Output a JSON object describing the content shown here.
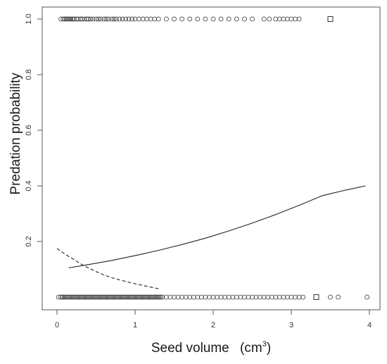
{
  "chart_data": {
    "type": "scatter",
    "xlabel": "Seed volume",
    "xlabel_unit": "(cm",
    "xlabel_unit_sup": "3",
    "xlabel_unit_close": ")",
    "ylabel": "Predation probability",
    "xlim": [
      0,
      4
    ],
    "ylim": [
      0,
      1
    ],
    "x_ticks": [
      {
        "value": 0,
        "label": "0"
      },
      {
        "value": 1,
        "label": "1"
      },
      {
        "value": 2,
        "label": "2"
      },
      {
        "value": 3,
        "label": "3"
      },
      {
        "value": 4,
        "label": "4"
      }
    ],
    "y_ticks": [
      {
        "value": 0.2,
        "label": "0.2"
      },
      {
        "value": 0.4,
        "label": "0.4"
      },
      {
        "value": 0.6,
        "label": "0.6"
      },
      {
        "value": 0.8,
        "label": "0.8"
      },
      {
        "value": 1.0,
        "label": "1.0"
      }
    ],
    "grid": false,
    "series": [
      {
        "marker": "circle",
        "points_y1": [
          0.05,
          0.08,
          0.1,
          0.12,
          0.14,
          0.16,
          0.18,
          0.2,
          0.22,
          0.25,
          0.27,
          0.3,
          0.32,
          0.35,
          0.38,
          0.4,
          0.43,
          0.46,
          0.5,
          0.53,
          0.56,
          0.6,
          0.63,
          0.66,
          0.7,
          0.73,
          0.76,
          0.8,
          0.84,
          0.88,
          0.92,
          0.96,
          1.0,
          1.05,
          1.1,
          1.15,
          1.2,
          1.25,
          1.3,
          1.4,
          1.5,
          1.6,
          1.7,
          1.8,
          1.9,
          2.0,
          2.1,
          2.2,
          2.3,
          2.4,
          2.5,
          2.65,
          2.72,
          2.8,
          2.85,
          2.9,
          2.95,
          3.0,
          3.05,
          3.1
        ],
        "points_y0": [
          0.02,
          0.05,
          0.07,
          0.09,
          0.11,
          0.13,
          0.15,
          0.17,
          0.19,
          0.21,
          0.23,
          0.25,
          0.27,
          0.29,
          0.31,
          0.33,
          0.35,
          0.37,
          0.39,
          0.41,
          0.43,
          0.45,
          0.47,
          0.49,
          0.51,
          0.53,
          0.55,
          0.57,
          0.59,
          0.61,
          0.63,
          0.65,
          0.67,
          0.69,
          0.71,
          0.73,
          0.75,
          0.77,
          0.79,
          0.81,
          0.83,
          0.85,
          0.87,
          0.89,
          0.91,
          0.93,
          0.95,
          0.97,
          0.99,
          1.01,
          1.03,
          1.05,
          1.07,
          1.09,
          1.11,
          1.13,
          1.15,
          1.17,
          1.19,
          1.21,
          1.23,
          1.25,
          1.27,
          1.29,
          1.31,
          1.33,
          1.35,
          1.4,
          1.45,
          1.5,
          1.55,
          1.6,
          1.65,
          1.7,
          1.75,
          1.8,
          1.85,
          1.9,
          1.95,
          2.0,
          2.05,
          2.1,
          2.15,
          2.2,
          2.25,
          2.3,
          2.35,
          2.4,
          2.45,
          2.5,
          2.55,
          2.6,
          2.65,
          2.7,
          2.75,
          2.8,
          2.85,
          2.9,
          2.95,
          3.0,
          3.05,
          3.1,
          3.15,
          3.5,
          3.6,
          3.97
        ]
      },
      {
        "marker": "square",
        "points_y1": [
          3.5
        ],
        "points_y0": [
          3.32
        ]
      }
    ],
    "curves": [
      {
        "style": "solid",
        "x": [
          0.15,
          0.4,
          0.7,
          1.0,
          1.3,
          1.6,
          1.9,
          2.2,
          2.5,
          2.8,
          3.1,
          3.4,
          3.7,
          3.95
        ],
        "y": [
          0.105,
          0.117,
          0.132,
          0.149,
          0.168,
          0.189,
          0.212,
          0.238,
          0.266,
          0.297,
          0.33,
          0.365,
          0.385,
          0.4
        ]
      },
      {
        "style": "dashed",
        "x": [
          0.0,
          0.1,
          0.2,
          0.3,
          0.4,
          0.5,
          0.6,
          0.7,
          0.8,
          0.9,
          1.0,
          1.1,
          1.2,
          1.3
        ],
        "y": [
          0.175,
          0.155,
          0.138,
          0.12,
          0.105,
          0.092,
          0.08,
          0.07,
          0.062,
          0.055,
          0.048,
          0.042,
          0.036,
          0.03
        ]
      }
    ]
  }
}
